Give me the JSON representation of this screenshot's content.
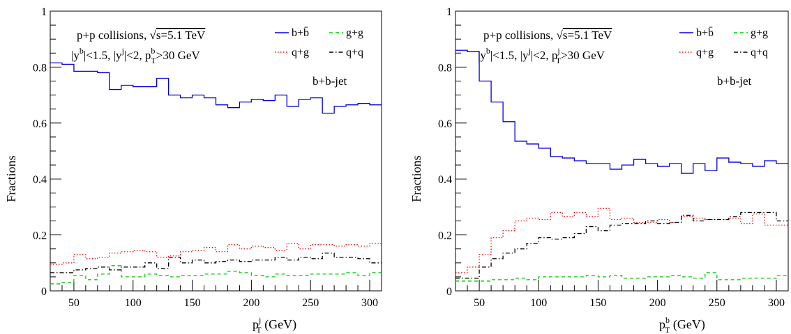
{
  "chart_data": [
    {
      "type": "line",
      "xlabel": "p_T^j (GeV)",
      "xlabel_main": "p",
      "xlabel_sub": "T",
      "xlabel_sup": "j",
      "xlabel_unit": " (GeV)",
      "ylabel": "Fractions",
      "xlim": [
        30,
        310
      ],
      "ylim": [
        0,
        1
      ],
      "x_ticks": [
        50,
        100,
        150,
        200,
        250,
        300
      ],
      "y_ticks": [
        "0",
        "0.2",
        "0.4",
        "0.6",
        "0.8",
        "1"
      ],
      "annotation_line1": "p+p collisions, √s=5.1 TeV",
      "annotation_line1_a": "p+p collisions, ",
      "annotation_line1_b": "s=5.1 TeV",
      "annotation_line2": "|y^b|<1.5, |y^j|<2, p_T^b>30 GeV",
      "annotation_process": "b+b-jet",
      "legend": [
        {
          "label": "b+b̄",
          "color": "#0000dd",
          "dash": "solid"
        },
        {
          "label": "g+g",
          "color": "#00cc00",
          "dash": "dashed"
        },
        {
          "label": "q+g",
          "color": "#ff0000",
          "dash": "dotted"
        },
        {
          "label": "q+q",
          "color": "#000000",
          "dash": "dashdot"
        }
      ],
      "bin_edges": [
        30,
        40,
        50,
        60,
        70,
        80,
        90,
        100,
        110,
        120,
        130,
        140,
        150,
        160,
        170,
        180,
        190,
        200,
        210,
        220,
        230,
        240,
        250,
        260,
        270,
        280,
        290,
        300,
        310
      ],
      "series": [
        {
          "name": "b+b̄",
          "color": "#0000dd",
          "dash": "solid",
          "values": [
            0.815,
            0.81,
            0.785,
            0.785,
            0.78,
            0.72,
            0.735,
            0.73,
            0.73,
            0.76,
            0.7,
            0.69,
            0.7,
            0.69,
            0.665,
            0.655,
            0.675,
            0.685,
            0.68,
            0.7,
            0.66,
            0.685,
            0.69,
            0.635,
            0.66,
            0.665,
            0.67,
            0.665
          ]
        },
        {
          "name": "g+g",
          "color": "#00cc00",
          "dash": "dashed",
          "values": [
            0.025,
            0.03,
            0.055,
            0.04,
            0.06,
            0.09,
            0.05,
            0.05,
            0.06,
            0.055,
            0.05,
            0.055,
            0.055,
            0.06,
            0.06,
            0.07,
            0.065,
            0.055,
            0.05,
            0.06,
            0.055,
            0.055,
            0.06,
            0.06,
            0.06,
            0.065,
            0.055,
            0.065
          ]
        },
        {
          "name": "q+g",
          "color": "#ff0000",
          "dash": "dotted",
          "values": [
            0.095,
            0.1,
            0.13,
            0.115,
            0.12,
            0.135,
            0.14,
            0.145,
            0.14,
            0.12,
            0.125,
            0.14,
            0.145,
            0.155,
            0.14,
            0.165,
            0.15,
            0.16,
            0.155,
            0.145,
            0.17,
            0.15,
            0.165,
            0.165,
            0.16,
            0.165,
            0.16,
            0.17
          ]
        },
        {
          "name": "q+q",
          "color": "#000000",
          "dash": "dashdot",
          "values": [
            0.065,
            0.065,
            0.075,
            0.08,
            0.085,
            0.075,
            0.085,
            0.085,
            0.1,
            0.08,
            0.12,
            0.1,
            0.11,
            0.1,
            0.105,
            0.11,
            0.105,
            0.11,
            0.11,
            0.12,
            0.11,
            0.12,
            0.115,
            0.135,
            0.12,
            0.12,
            0.115,
            0.1
          ]
        }
      ]
    },
    {
      "type": "line",
      "xlabel": "p_T^b (GeV)",
      "xlabel_main": "p",
      "xlabel_sub": "T",
      "xlabel_sup": "b",
      "xlabel_unit": " (GeV)",
      "ylabel": "Fractions",
      "xlim": [
        30,
        310
      ],
      "ylim": [
        0,
        1
      ],
      "x_ticks": [
        50,
        100,
        150,
        200,
        250,
        300
      ],
      "y_ticks": [
        "0",
        "0.2",
        "0.4",
        "0.6",
        "0.8",
        "1"
      ],
      "annotation_line1": "p+p collisions, √s=5.1 TeV",
      "annotation_line1_a": "p+p collisions, ",
      "annotation_line1_b": "s=5.1 TeV",
      "annotation_line2": "|y^b|<1.5, |y^j|<2, p_T^j>30 GeV",
      "annotation_process": "b+b-jet",
      "legend": [
        {
          "label": "b+b̄",
          "color": "#0000dd",
          "dash": "solid"
        },
        {
          "label": "g+g",
          "color": "#00cc00",
          "dash": "dashed"
        },
        {
          "label": "q+g",
          "color": "#ff0000",
          "dash": "dotted"
        },
        {
          "label": "q+q",
          "color": "#000000",
          "dash": "dashdot"
        }
      ],
      "bin_edges": [
        30,
        40,
        50,
        60,
        70,
        80,
        90,
        100,
        110,
        120,
        130,
        140,
        150,
        160,
        170,
        180,
        190,
        200,
        210,
        220,
        230,
        240,
        250,
        260,
        270,
        280,
        290,
        300,
        310
      ],
      "series": [
        {
          "name": "b+b̄",
          "color": "#0000dd",
          "dash": "solid",
          "values": [
            0.86,
            0.855,
            0.75,
            0.675,
            0.605,
            0.535,
            0.525,
            0.51,
            0.48,
            0.475,
            0.465,
            0.455,
            0.455,
            0.435,
            0.45,
            0.47,
            0.455,
            0.445,
            0.455,
            0.42,
            0.455,
            0.43,
            0.475,
            0.46,
            0.455,
            0.445,
            0.465,
            0.455
          ]
        },
        {
          "name": "g+g",
          "color": "#00cc00",
          "dash": "dashed",
          "values": [
            0.035,
            0.035,
            0.035,
            0.04,
            0.04,
            0.045,
            0.04,
            0.05,
            0.05,
            0.05,
            0.05,
            0.055,
            0.05,
            0.055,
            0.045,
            0.045,
            0.05,
            0.05,
            0.055,
            0.05,
            0.045,
            0.065,
            0.04,
            0.04,
            0.045,
            0.045,
            0.045,
            0.055
          ]
        },
        {
          "name": "q+g",
          "color": "#ff0000",
          "dash": "dotted",
          "values": [
            0.065,
            0.085,
            0.13,
            0.19,
            0.215,
            0.25,
            0.26,
            0.255,
            0.28,
            0.265,
            0.28,
            0.265,
            0.295,
            0.255,
            0.26,
            0.245,
            0.245,
            0.255,
            0.245,
            0.265,
            0.26,
            0.255,
            0.255,
            0.26,
            0.24,
            0.275,
            0.235,
            0.235
          ]
        },
        {
          "name": "q+q",
          "color": "#000000",
          "dash": "dashdot",
          "values": [
            0.045,
            0.045,
            0.085,
            0.115,
            0.135,
            0.15,
            0.17,
            0.19,
            0.185,
            0.19,
            0.205,
            0.23,
            0.215,
            0.235,
            0.24,
            0.24,
            0.25,
            0.24,
            0.245,
            0.27,
            0.25,
            0.255,
            0.255,
            0.265,
            0.28,
            0.28,
            0.28,
            0.25
          ]
        }
      ]
    }
  ]
}
